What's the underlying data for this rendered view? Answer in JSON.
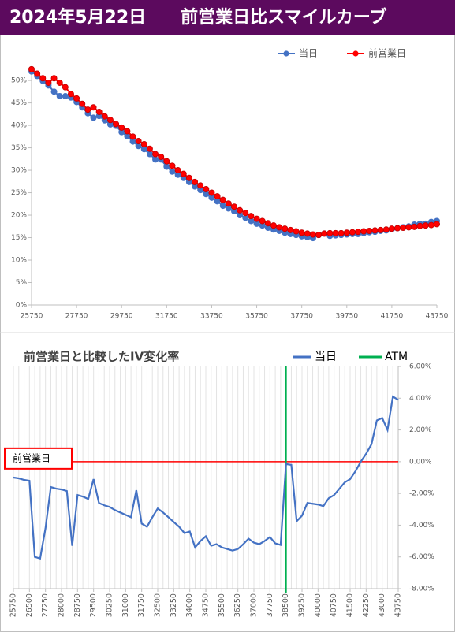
{
  "chart_data": [
    {
      "type": "line",
      "title": "2024年5月22日　　前営業日比スマイルカーブ",
      "markers": true,
      "grid": false,
      "x": [
        25750,
        26000,
        26250,
        26500,
        26750,
        27000,
        27250,
        27500,
        27750,
        28000,
        28250,
        28500,
        28750,
        29000,
        29250,
        29500,
        29750,
        30000,
        30250,
        30500,
        30750,
        31000,
        31250,
        31500,
        31750,
        32000,
        32250,
        32500,
        32750,
        33000,
        33250,
        33500,
        33750,
        34000,
        34250,
        34500,
        34750,
        35000,
        35250,
        35500,
        35750,
        36000,
        36250,
        36500,
        36750,
        37000,
        37250,
        37500,
        37750,
        38000,
        38250,
        38500,
        38750,
        39000,
        39250,
        39500,
        39750,
        40000,
        40250,
        40500,
        40750,
        41000,
        41250,
        41500,
        41750,
        42000,
        42250,
        42500,
        42750,
        43000,
        43250,
        43500,
        43750
      ],
      "series": [
        {
          "name": "当日",
          "color": "#4472c4",
          "values": [
            52.0,
            51.0,
            49.9,
            48.9,
            47.5,
            46.5,
            46.5,
            46.2,
            45.2,
            44.0,
            42.7,
            41.7,
            42.1,
            41.1,
            40.2,
            39.9,
            38.5,
            37.6,
            36.4,
            35.4,
            34.7,
            33.6,
            32.4,
            32.4,
            30.8,
            29.7,
            29.0,
            28.3,
            27.4,
            26.4,
            25.6,
            24.7,
            23.9,
            23.1,
            22.1,
            21.5,
            20.9,
            20.0,
            19.4,
            18.7,
            18.1,
            17.7,
            17.2,
            16.8,
            16.5,
            16.1,
            15.8,
            15.6,
            15.3,
            15.1,
            14.9,
            15.6,
            15.9,
            15.4,
            15.5,
            15.6,
            15.7,
            15.8,
            15.8,
            16.0,
            16.2,
            16.3,
            16.5,
            16.6,
            16.9,
            17.1,
            17.3,
            17.5,
            17.9,
            18.1,
            18.1,
            18.5,
            18.7
          ]
        },
        {
          "name": "前営業日",
          "color": "#ff0000",
          "values": [
            52.5,
            51.5,
            50.5,
            49.5,
            50.5,
            49.5,
            48.5,
            47,
            46,
            44.8,
            43.5,
            44,
            43,
            42,
            41.2,
            40.3,
            39.5,
            38.7,
            37.5,
            36.5,
            35.8,
            34.8,
            33.6,
            33,
            32,
            31,
            30,
            29.2,
            28.3,
            27.4,
            26.6,
            25.8,
            25,
            24.2,
            23.4,
            22.6,
            21.9,
            21.1,
            20.5,
            19.8,
            19.2,
            18.7,
            18.2,
            17.7,
            17.3,
            17,
            16.7,
            16.4,
            16.1,
            15.9,
            15.7,
            15.6,
            15.9,
            16,
            16,
            16,
            16.1,
            16.2,
            16.3,
            16.4,
            16.5,
            16.6,
            16.7,
            16.8,
            17,
            17.1,
            17.2,
            17.3,
            17.4,
            17.6,
            17.7,
            17.8,
            18
          ]
        }
      ],
      "xlim": [
        25750,
        43750
      ],
      "xticks": [
        25750,
        27750,
        29750,
        31750,
        33750,
        35750,
        37750,
        39750,
        41750,
        43750
      ],
      "ylim": [
        0,
        53
      ],
      "yticks": [
        {
          "value": 0,
          "label": "0%"
        },
        {
          "value": 5,
          "label": "5%"
        },
        {
          "value": 10,
          "label": "10%"
        },
        {
          "value": 15,
          "label": "15%"
        },
        {
          "value": 20,
          "label": "20%"
        },
        {
          "value": 25,
          "label": "25%"
        },
        {
          "value": 30,
          "label": "30%"
        },
        {
          "value": 35,
          "label": "35%"
        },
        {
          "value": 40,
          "label": "40%"
        },
        {
          "value": 45,
          "label": "45%"
        },
        {
          "value": 50,
          "label": "50%"
        }
      ],
      "legend": "top"
    },
    {
      "type": "line",
      "title": "前営業日と比較したIV変化率",
      "markers": false,
      "grid": true,
      "x": [
        25750,
        26000,
        26250,
        26500,
        26750,
        27000,
        27250,
        27500,
        27750,
        28000,
        28250,
        28500,
        28750,
        29000,
        29250,
        29500,
        29750,
        30000,
        30250,
        30500,
        30750,
        31000,
        31250,
        31500,
        31750,
        32000,
        32250,
        32500,
        32750,
        33000,
        33250,
        33500,
        33750,
        34000,
        34250,
        34500,
        34750,
        35000,
        35250,
        35500,
        35750,
        36000,
        36250,
        36500,
        36750,
        37000,
        37250,
        37500,
        37750,
        38000,
        38250,
        38500,
        38750,
        39000,
        39250,
        39500,
        39750,
        40000,
        40250,
        40500,
        40750,
        41000,
        41250,
        41500,
        41750,
        42000,
        42250,
        42500,
        42750,
        43000,
        43250,
        43500,
        43750
      ],
      "series": [
        {
          "name": "当日",
          "color": "#4472c4",
          "values": [
            -1.0,
            -1.05,
            -1.15,
            -1.2,
            -6.0,
            -6.1,
            -4.2,
            -1.6,
            -1.7,
            -1.75,
            -1.85,
            -5.3,
            -2.1,
            -2.2,
            -2.35,
            -1.1,
            -2.6,
            -2.75,
            -2.85,
            -3.05,
            -3.2,
            -3.35,
            -3.5,
            -1.8,
            -3.9,
            -4.1,
            -3.5,
            -2.95,
            -3.2,
            -3.5,
            -3.8,
            -4.1,
            -4.5,
            -4.4,
            -5.4,
            -5.0,
            -4.7,
            -5.3,
            -5.2,
            -5.4,
            -5.5,
            -5.6,
            -5.5,
            -5.2,
            -4.85,
            -5.1,
            -5.2,
            -5.0,
            -4.75,
            -5.15,
            -5.25,
            -0.15,
            -0.2,
            -3.75,
            -3.4,
            -2.6,
            -2.65,
            -2.7,
            -2.8,
            -2.3,
            -2.1,
            -1.7,
            -1.3,
            -1.1,
            -0.6,
            0.0,
            0.5,
            1.1,
            2.6,
            2.75,
            2.0,
            4.1,
            3.9
          ]
        }
      ],
      "atm": {
        "value": 38500,
        "label": "ATM",
        "color": "#00b050"
      },
      "reference_line": {
        "value": 0,
        "label": "前営業日",
        "color": "#ff0000"
      },
      "xlim": [
        25750,
        43750
      ],
      "xticks": [
        25750,
        26500,
        27250,
        28000,
        28750,
        29500,
        30250,
        31000,
        31750,
        32500,
        33250,
        34000,
        34750,
        35500,
        36250,
        37000,
        37750,
        38500,
        39250,
        40000,
        40750,
        41500,
        42250,
        43000,
        43750
      ],
      "ylim": [
        -8,
        6
      ],
      "yticks": [
        {
          "value": -8,
          "label": "-8.00%"
        },
        {
          "value": -6,
          "label": "-6.00%"
        },
        {
          "value": -4,
          "label": "-4.00%"
        },
        {
          "value": -2,
          "label": "-2.00%"
        },
        {
          "value": 0,
          "label": "0.00%"
        },
        {
          "value": 2,
          "label": "2.00%"
        },
        {
          "value": 4,
          "label": "4.00%"
        },
        {
          "value": 6,
          "label": "6.00%"
        }
      ],
      "yaxis": "right",
      "legend": "top"
    }
  ]
}
